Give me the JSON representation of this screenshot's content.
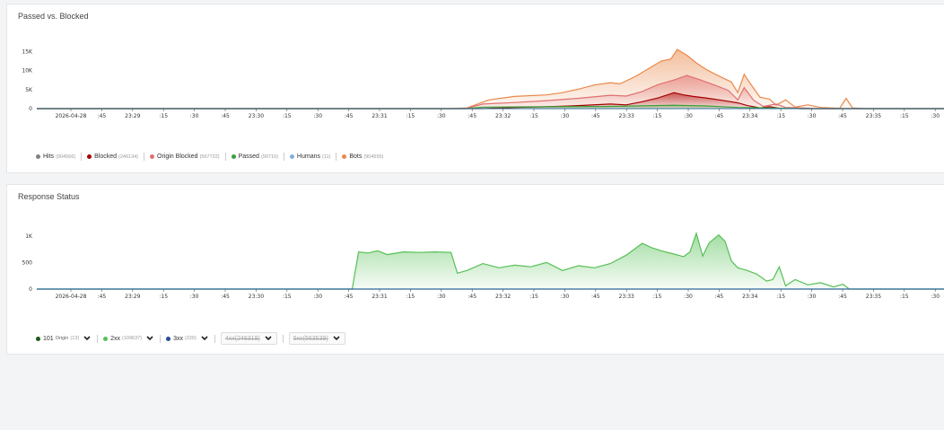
{
  "cards": {
    "passed_blocked_title": "Passed vs. Blocked",
    "response_status_title": "Response Status"
  },
  "legend_top": [
    {
      "label": "Hits",
      "count": "(904566)",
      "color": "#808080"
    },
    {
      "label": "Blocked",
      "count": "(246134)",
      "color": "#a50000"
    },
    {
      "label": "Origin Blocked",
      "count": "(567722)",
      "color": "#e07070"
    },
    {
      "label": "Passed",
      "count": "(90710)",
      "color": "#3aa03a"
    },
    {
      "label": "Humans",
      "count": "(11)",
      "color": "#80b0e0"
    },
    {
      "label": "Bots",
      "count": "(904555)",
      "color": "#e8894a"
    }
  ],
  "legend_bottom": [
    {
      "label": "101",
      "sub": "Origin",
      "count": "(13)",
      "color": "#1a5c1a",
      "disabled": false
    },
    {
      "label": "2xx",
      "count": "(109637)",
      "color": "#56c056",
      "disabled": false
    },
    {
      "label": "3xx",
      "count": "(220)",
      "color": "#2a4a9a",
      "disabled": false
    },
    {
      "label": "4xx",
      "count": "(246318)",
      "color": "#f0b090",
      "disabled": true
    },
    {
      "label": "5xx",
      "count": "(563539)",
      "color": "#f08888",
      "disabled": true
    }
  ],
  "chart_data": [
    {
      "type": "area",
      "title": "Passed vs. Blocked",
      "x_ticks": [
        "2026-04-28",
        ":45",
        "23:29",
        ":15",
        ":30",
        ":45",
        "23:30",
        ":15",
        ":30",
        ":45",
        "23:31",
        ":15",
        ":30",
        ":45",
        "23:32",
        ":15",
        ":30",
        ":45",
        "23:33",
        ":15",
        ":30",
        ":45",
        "23:34",
        ":15",
        ":30",
        ":45",
        "23:35",
        ":15",
        ":30"
      ],
      "y_ticks": [
        "15K",
        "10K",
        "5K",
        "0"
      ],
      "y_tick_values": [
        15000,
        10000,
        5000,
        0
      ],
      "ylim": [
        0,
        16000
      ],
      "x_range": [
        0,
        28.5
      ],
      "series": [
        {
          "name": "Bots",
          "color": "#e8894a",
          "points": [
            [
              0,
              0
            ],
            [
              13,
              0
            ],
            [
              13.5,
              200
            ],
            [
              14.2,
              2300
            ],
            [
              15,
              3200
            ],
            [
              16,
              3600
            ],
            [
              16.5,
              4200
            ],
            [
              17,
              5100
            ],
            [
              17.5,
              6200
            ],
            [
              18,
              6800
            ],
            [
              18.3,
              6500
            ],
            [
              18.8,
              8500
            ],
            [
              19.2,
              10500
            ],
            [
              19.6,
              12500
            ],
            [
              19.9,
              13000
            ],
            [
              20.1,
              15500
            ],
            [
              20.4,
              14000
            ],
            [
              20.7,
              12000
            ],
            [
              21,
              10300
            ],
            [
              21.3,
              9000
            ],
            [
              21.8,
              7000
            ],
            [
              22,
              4200
            ],
            [
              22.2,
              9000
            ],
            [
              22.4,
              6500
            ],
            [
              22.7,
              3000
            ],
            [
              23,
              2500
            ],
            [
              23.2,
              900
            ],
            [
              23.5,
              2300
            ],
            [
              23.8,
              400
            ],
            [
              24.2,
              1000
            ],
            [
              24.6,
              300
            ],
            [
              25.2,
              100
            ],
            [
              25.4,
              2700
            ],
            [
              25.6,
              200
            ],
            [
              26,
              0
            ],
            [
              28.5,
              0
            ]
          ]
        },
        {
          "name": "Origin Blocked",
          "color": "#e07070",
          "points": [
            [
              0,
              0
            ],
            [
              13,
              0
            ],
            [
              13.5,
              100
            ],
            [
              14,
              1200
            ],
            [
              15,
              1600
            ],
            [
              16,
              2100
            ],
            [
              17,
              2700
            ],
            [
              18,
              3500
            ],
            [
              18.5,
              3300
            ],
            [
              19,
              4500
            ],
            [
              19.5,
              6300
            ],
            [
              20,
              7500
            ],
            [
              20.4,
              8700
            ],
            [
              20.8,
              7600
            ],
            [
              21.2,
              6400
            ],
            [
              21.7,
              4800
            ],
            [
              22,
              2300
            ],
            [
              22.2,
              5500
            ],
            [
              22.5,
              2200
            ],
            [
              22.8,
              600
            ],
            [
              23.2,
              1200
            ],
            [
              23.5,
              300
            ],
            [
              24,
              200
            ],
            [
              24.5,
              0
            ],
            [
              28.5,
              0
            ]
          ]
        },
        {
          "name": "Blocked",
          "color": "#a50000",
          "points": [
            [
              0,
              0
            ],
            [
              14,
              0
            ],
            [
              15,
              300
            ],
            [
              16,
              500
            ],
            [
              17,
              800
            ],
            [
              18,
              1200
            ],
            [
              18.5,
              1000
            ],
            [
              19,
              1800
            ],
            [
              19.5,
              2800
            ],
            [
              20,
              4200
            ],
            [
              20.3,
              3600
            ],
            [
              20.6,
              3200
            ],
            [
              21,
              2800
            ],
            [
              21.5,
              2200
            ],
            [
              22,
              1500
            ],
            [
              22.3,
              800
            ],
            [
              22.7,
              200
            ],
            [
              23,
              500
            ],
            [
              23.3,
              100
            ],
            [
              24,
              0
            ],
            [
              28.5,
              0
            ]
          ]
        },
        {
          "name": "Passed",
          "color": "#3aa03a",
          "points": [
            [
              0,
              0
            ],
            [
              13.5,
              0
            ],
            [
              14,
              400
            ],
            [
              16,
              500
            ],
            [
              18,
              600
            ],
            [
              20,
              900
            ],
            [
              21,
              700
            ],
            [
              22,
              300
            ],
            [
              23,
              200
            ],
            [
              24,
              0
            ],
            [
              28.5,
              0
            ]
          ]
        }
      ]
    },
    {
      "type": "area",
      "title": "Response Status",
      "x_ticks": [
        "2026-04-28",
        ":45",
        "23:29",
        ":15",
        ":30",
        ":45",
        "23:30",
        ":15",
        ":30",
        ":45",
        "23:31",
        ":15",
        ":30",
        ":45",
        "23:32",
        ":15",
        ":30",
        ":45",
        "23:33",
        ":15",
        ":30",
        ":45",
        "23:34",
        ":15",
        ":30",
        ":45",
        "23:35",
        ":15",
        ":30"
      ],
      "y_ticks": [
        "1K",
        "500",
        "0"
      ],
      "y_tick_values": [
        1000,
        500,
        0
      ],
      "ylim": [
        0,
        1150
      ],
      "x_range": [
        0,
        28.5
      ],
      "series": [
        {
          "name": "2xx",
          "color": "#56c056",
          "points": [
            [
              0,
              0
            ],
            [
              9.9,
              0
            ],
            [
              10.1,
              700
            ],
            [
              10.4,
              680
            ],
            [
              10.7,
              720
            ],
            [
              11,
              650
            ],
            [
              11.5,
              700
            ],
            [
              12,
              690
            ],
            [
              12.5,
              700
            ],
            [
              13,
              690
            ],
            [
              13.2,
              300
            ],
            [
              13.5,
              350
            ],
            [
              14,
              480
            ],
            [
              14.5,
              400
            ],
            [
              15,
              450
            ],
            [
              15.5,
              420
            ],
            [
              16,
              500
            ],
            [
              16.5,
              350
            ],
            [
              17,
              440
            ],
            [
              17.5,
              400
            ],
            [
              18,
              480
            ],
            [
              18.5,
              640
            ],
            [
              19,
              860
            ],
            [
              19.3,
              780
            ],
            [
              19.6,
              720
            ],
            [
              20,
              660
            ],
            [
              20.3,
              610
            ],
            [
              20.5,
              700
            ],
            [
              20.7,
              1050
            ],
            [
              20.9,
              620
            ],
            [
              21.1,
              870
            ],
            [
              21.4,
              1020
            ],
            [
              21.6,
              900
            ],
            [
              21.8,
              530
            ],
            [
              22,
              400
            ],
            [
              22.3,
              350
            ],
            [
              22.6,
              280
            ],
            [
              22.9,
              150
            ],
            [
              23.1,
              180
            ],
            [
              23.3,
              420
            ],
            [
              23.5,
              60
            ],
            [
              23.8,
              180
            ],
            [
              24.2,
              80
            ],
            [
              24.6,
              120
            ],
            [
              25,
              40
            ],
            [
              25.3,
              90
            ],
            [
              25.5,
              0
            ],
            [
              28.5,
              0
            ]
          ]
        },
        {
          "name": "3xx",
          "color": "#2a4a9a",
          "points": [
            [
              0,
              0
            ],
            [
              28.5,
              0
            ]
          ]
        }
      ]
    }
  ]
}
